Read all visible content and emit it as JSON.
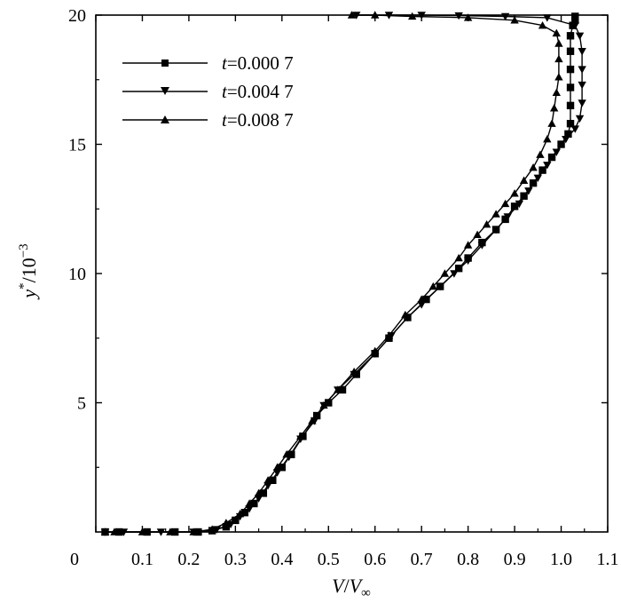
{
  "chart_data": {
    "type": "line",
    "title": "",
    "xlim": [
      0,
      1.1
    ],
    "ylim": [
      0,
      20
    ],
    "x_ticks": [
      "0",
      "0.1",
      "0.2",
      "0.3",
      "0.4",
      "0.5",
      "0.6",
      "0.7",
      "0.8",
      "0.9",
      "1.0",
      "1.1"
    ],
    "y_ticks": [
      "5",
      "10",
      "15",
      "20"
    ],
    "xlabel": {
      "var": "V",
      "sep": "/",
      "var2": "V",
      "sub": "∞"
    },
    "ylabel": {
      "var": "y",
      "sup": "*",
      "rest": "/10",
      "exp": "−3"
    },
    "legend_position": "upper-left",
    "series": [
      {
        "name": "t=0.000 7",
        "name_var": "t",
        "name_rest": "=0.000 7",
        "marker": "square",
        "points": [
          [
            0.02,
            0
          ],
          [
            0.05,
            0
          ],
          [
            0.11,
            0
          ],
          [
            0.17,
            0
          ],
          [
            0.22,
            0
          ],
          [
            0.25,
            0.05
          ],
          [
            0.28,
            0.2
          ],
          [
            0.3,
            0.45
          ],
          [
            0.32,
            0.75
          ],
          [
            0.34,
            1.1
          ],
          [
            0.36,
            1.5
          ],
          [
            0.38,
            2.0
          ],
          [
            0.4,
            2.5
          ],
          [
            0.42,
            3.0
          ],
          [
            0.445,
            3.7
          ],
          [
            0.475,
            4.5
          ],
          [
            0.5,
            5.0
          ],
          [
            0.53,
            5.5
          ],
          [
            0.56,
            6.1
          ],
          [
            0.6,
            6.9
          ],
          [
            0.63,
            7.5
          ],
          [
            0.67,
            8.3
          ],
          [
            0.71,
            9.0
          ],
          [
            0.74,
            9.5
          ],
          [
            0.78,
            10.2
          ],
          [
            0.8,
            10.6
          ],
          [
            0.83,
            11.2
          ],
          [
            0.86,
            11.7
          ],
          [
            0.88,
            12.1
          ],
          [
            0.9,
            12.6
          ],
          [
            0.92,
            13.0
          ],
          [
            0.94,
            13.5
          ],
          [
            0.96,
            14.0
          ],
          [
            0.98,
            14.5
          ],
          [
            1.0,
            15.0
          ],
          [
            1.015,
            15.4
          ],
          [
            1.02,
            15.8
          ],
          [
            1.02,
            16.5
          ],
          [
            1.02,
            17.2
          ],
          [
            1.02,
            17.9
          ],
          [
            1.02,
            18.6
          ],
          [
            1.02,
            19.2
          ],
          [
            1.025,
            19.6
          ],
          [
            1.03,
            19.8
          ],
          [
            1.03,
            19.95
          ]
        ]
      },
      {
        "name": "t=0.004 7",
        "name_var": "t",
        "name_rest": "=0.004 7",
        "marker": "triangle-down",
        "points": [
          [
            0.02,
            0
          ],
          [
            0.06,
            0
          ],
          [
            0.14,
            0
          ],
          [
            0.21,
            0
          ],
          [
            0.26,
            0.1
          ],
          [
            0.29,
            0.3
          ],
          [
            0.31,
            0.6
          ],
          [
            0.33,
            0.9
          ],
          [
            0.35,
            1.3
          ],
          [
            0.37,
            1.8
          ],
          [
            0.39,
            2.3
          ],
          [
            0.415,
            2.9
          ],
          [
            0.44,
            3.6
          ],
          [
            0.47,
            4.3
          ],
          [
            0.49,
            4.9
          ],
          [
            0.52,
            5.5
          ],
          [
            0.555,
            6.1
          ],
          [
            0.6,
            6.9
          ],
          [
            0.635,
            7.6
          ],
          [
            0.67,
            8.3
          ],
          [
            0.7,
            8.8
          ],
          [
            0.74,
            9.5
          ],
          [
            0.77,
            10.0
          ],
          [
            0.8,
            10.5
          ],
          [
            0.83,
            11.1
          ],
          [
            0.86,
            11.7
          ],
          [
            0.885,
            12.2
          ],
          [
            0.91,
            12.7
          ],
          [
            0.93,
            13.2
          ],
          [
            0.95,
            13.7
          ],
          [
            0.97,
            14.2
          ],
          [
            0.99,
            14.7
          ],
          [
            1.01,
            15.2
          ],
          [
            1.03,
            15.6
          ],
          [
            1.04,
            16.0
          ],
          [
            1.045,
            16.6
          ],
          [
            1.045,
            17.3
          ],
          [
            1.045,
            17.9
          ],
          [
            1.045,
            18.6
          ],
          [
            1.04,
            19.2
          ],
          [
            1.03,
            19.6
          ],
          [
            0.97,
            19.9
          ],
          [
            0.88,
            19.95
          ],
          [
            0.78,
            19.98
          ],
          [
            0.7,
            20.0
          ],
          [
            0.63,
            20.0
          ],
          [
            0.56,
            20.0
          ]
        ]
      },
      {
        "name": "t=0.008 7",
        "name_var": "t",
        "name_rest": "=0.008 7",
        "marker": "triangle-up",
        "points": [
          [
            0.02,
            0
          ],
          [
            0.04,
            0
          ],
          [
            0.1,
            0
          ],
          [
            0.16,
            0
          ],
          [
            0.21,
            0
          ],
          [
            0.25,
            0.1
          ],
          [
            0.28,
            0.35
          ],
          [
            0.31,
            0.7
          ],
          [
            0.33,
            1.1
          ],
          [
            0.35,
            1.5
          ],
          [
            0.37,
            2.0
          ],
          [
            0.39,
            2.5
          ],
          [
            0.41,
            3.0
          ],
          [
            0.44,
            3.7
          ],
          [
            0.465,
            4.3
          ],
          [
            0.49,
            4.9
          ],
          [
            0.52,
            5.5
          ],
          [
            0.555,
            6.2
          ],
          [
            0.6,
            7.0
          ],
          [
            0.63,
            7.6
          ],
          [
            0.665,
            8.4
          ],
          [
            0.7,
            9.0
          ],
          [
            0.725,
            9.5
          ],
          [
            0.75,
            10.0
          ],
          [
            0.78,
            10.6
          ],
          [
            0.8,
            11.1
          ],
          [
            0.82,
            11.5
          ],
          [
            0.84,
            11.9
          ],
          [
            0.86,
            12.3
          ],
          [
            0.88,
            12.7
          ],
          [
            0.9,
            13.1
          ],
          [
            0.92,
            13.6
          ],
          [
            0.94,
            14.1
          ],
          [
            0.955,
            14.6
          ],
          [
            0.97,
            15.2
          ],
          [
            0.98,
            15.8
          ],
          [
            0.985,
            16.4
          ],
          [
            0.99,
            17.0
          ],
          [
            0.995,
            17.6
          ],
          [
            0.995,
            18.3
          ],
          [
            0.995,
            18.9
          ],
          [
            0.99,
            19.3
          ],
          [
            0.96,
            19.6
          ],
          [
            0.9,
            19.8
          ],
          [
            0.8,
            19.9
          ],
          [
            0.68,
            19.95
          ],
          [
            0.6,
            20.0
          ],
          [
            0.55,
            20.0
          ]
        ]
      }
    ]
  }
}
